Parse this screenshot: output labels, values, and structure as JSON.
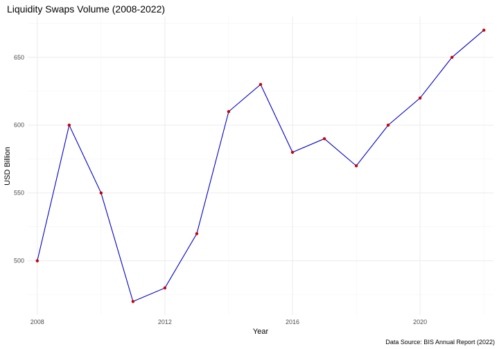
{
  "chart_data": {
    "type": "line",
    "title": "Liquidity Swaps Volume (2008-2022)",
    "xlabel": "Year",
    "ylabel": "USD Billion",
    "caption": "Data Source: BIS Annual Report (2022)",
    "x": [
      2008,
      2009,
      2010,
      2011,
      2012,
      2013,
      2014,
      2015,
      2016,
      2017,
      2018,
      2019,
      2020,
      2021,
      2022
    ],
    "series": [
      {
        "values": [
          500,
          600,
          550,
          470,
          480,
          520,
          610,
          630,
          580,
          590,
          570,
          600,
          620,
          650,
          670
        ],
        "line_color": "#0000cc",
        "point_color": "#cc0000"
      }
    ],
    "xlim": [
      2007.7,
      2022.3
    ],
    "ylim": [
      460,
      680
    ],
    "x_ticks": [
      2008,
      2012,
      2016,
      2020
    ],
    "y_ticks": [
      500,
      550,
      600,
      650
    ],
    "grid": true
  }
}
